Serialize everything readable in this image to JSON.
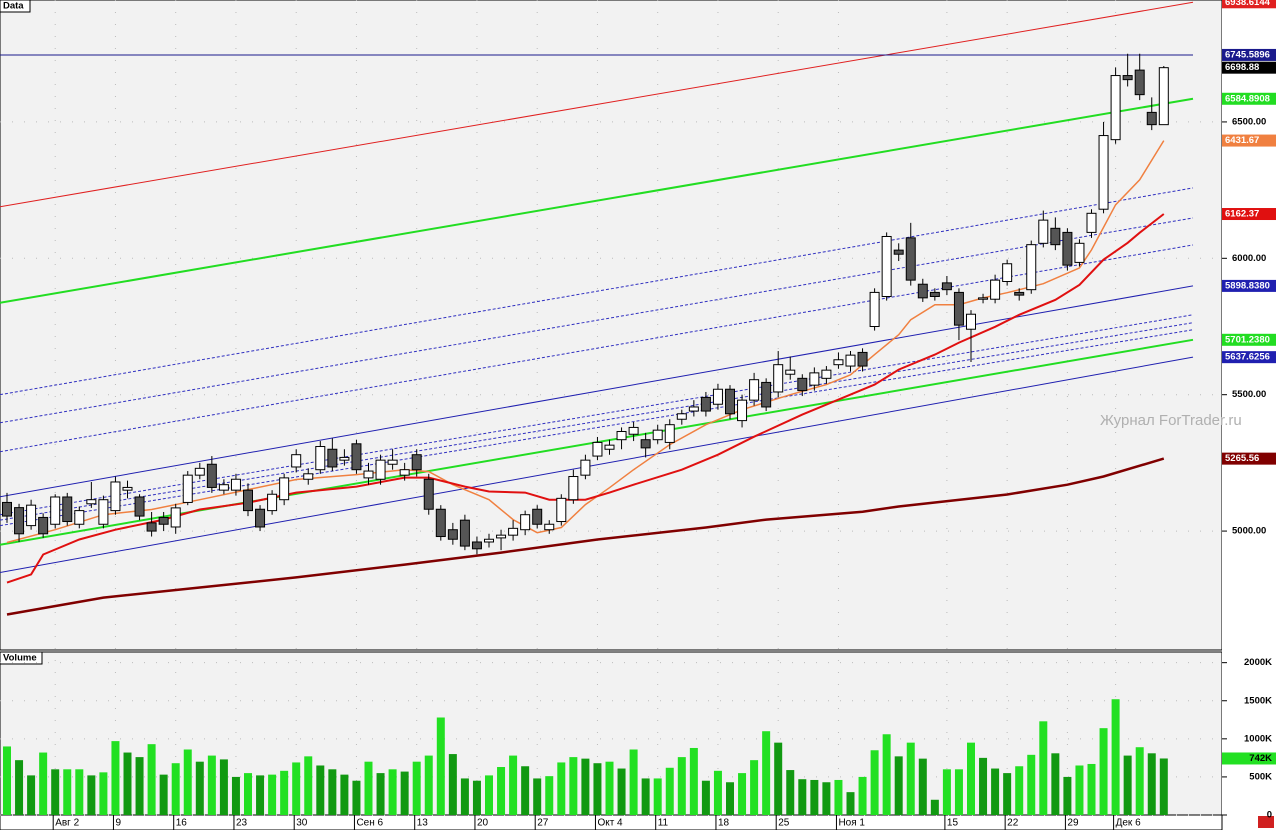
{
  "chart_data": [
    {
      "type": "candlestick",
      "panel_label": "Data",
      "annotation": "Журнал ForTrader.ru",
      "categories": [
        null,
        null,
        null,
        null,
        "Авг 2",
        null,
        null,
        null,
        null,
        "9",
        null,
        null,
        null,
        null,
        "16",
        null,
        null,
        null,
        null,
        "23",
        null,
        null,
        null,
        null,
        "30",
        null,
        null,
        null,
        null,
        "Сен 6",
        null,
        null,
        null,
        null,
        "13",
        null,
        null,
        null,
        null,
        "20",
        null,
        null,
        null,
        null,
        "27",
        null,
        null,
        null,
        null,
        "Окт 4",
        null,
        null,
        null,
        null,
        "11",
        null,
        null,
        null,
        null,
        "18",
        null,
        null,
        null,
        null,
        "25",
        null,
        null,
        null,
        null,
        "Ноя 1",
        null,
        null,
        null,
        null,
        null,
        null,
        null,
        null,
        "15",
        null,
        null,
        null,
        null,
        "22",
        null,
        null,
        null,
        null,
        "29",
        null,
        null,
        null,
        "Дек 6",
        null,
        null,
        null,
        null
      ],
      "open": [
        5105,
        5086,
        5020,
        5050,
        5025,
        5125,
        5025,
        5100,
        5025,
        5075,
        5150,
        5125,
        5030,
        5050,
        5015,
        5105,
        5205,
        5245,
        5150,
        5150,
        5150,
        5080,
        5075,
        5115,
        5235,
        5190,
        5225,
        5300,
        5260,
        5320,
        5195,
        5190,
        5245,
        5205,
        5280,
        5190,
        5080,
        5005,
        5040,
        4960,
        4960,
        4975,
        4985,
        5005,
        5080,
        5005,
        5035,
        5115,
        5205,
        5275,
        5300,
        5335,
        5355,
        5335,
        5335,
        5325,
        5410,
        5440,
        5490,
        5465,
        5520,
        5405,
        5480,
        5545,
        5510,
        5575,
        5560,
        5535,
        5560,
        5610,
        5605,
        5655,
        5750,
        5860,
        6030,
        6075,
        5905,
        5875,
        5910,
        5875,
        5740,
        5850,
        5850,
        5915,
        5875,
        5885,
        6055,
        6110,
        6095,
        5985,
        6095,
        6180,
        6435,
        6670,
        6690,
        6535,
        6490
      ],
      "high": [
        5140,
        5100,
        5115,
        5065,
        5135,
        5140,
        5090,
        5180,
        5130,
        5200,
        5185,
        5135,
        5070,
        5070,
        5100,
        5220,
        5250,
        5275,
        5190,
        5210,
        5175,
        5095,
        5150,
        5210,
        5300,
        5230,
        5330,
        5340,
        5300,
        5335,
        5250,
        5280,
        5300,
        5250,
        5300,
        5210,
        5095,
        5030,
        5060,
        4980,
        4990,
        5005,
        5040,
        5075,
        5095,
        5040,
        5135,
        5225,
        5280,
        5345,
        5335,
        5380,
        5400,
        5360,
        5390,
        5410,
        5445,
        5480,
        5510,
        5540,
        5535,
        5500,
        5580,
        5560,
        5660,
        5640,
        5575,
        5600,
        5605,
        5655,
        5660,
        5670,
        5890,
        6095,
        6055,
        6130,
        5925,
        5890,
        5935,
        5890,
        5810,
        5870,
        5940,
        5995,
        5890,
        6065,
        6175,
        6150,
        6110,
        6070,
        6180,
        6500,
        6700,
        6750,
        6750,
        6590,
        6705
      ],
      "low": [
        5030,
        4960,
        5005,
        4975,
        5010,
        5020,
        5010,
        5085,
        5010,
        5060,
        5120,
        5040,
        4980,
        5000,
        4990,
        5095,
        5190,
        5140,
        5135,
        5130,
        5055,
        5000,
        5060,
        5095,
        5215,
        5170,
        5210,
        5220,
        5240,
        5210,
        5170,
        5170,
        5225,
        5185,
        5200,
        5060,
        4965,
        4950,
        4930,
        4915,
        4940,
        4930,
        4965,
        4985,
        5010,
        4990,
        5020,
        5100,
        5190,
        5260,
        5280,
        5300,
        5330,
        5270,
        5320,
        5300,
        5390,
        5420,
        5420,
        5445,
        5410,
        5380,
        5460,
        5440,
        5490,
        5555,
        5495,
        5515,
        5540,
        5595,
        5585,
        5585,
        5735,
        5845,
        5990,
        5900,
        5840,
        5845,
        5865,
        5700,
        5620,
        5835,
        5835,
        5900,
        5845,
        5870,
        6040,
        6030,
        5955,
        5970,
        6075,
        6165,
        6420,
        6630,
        6580,
        6470,
        6500
      ],
      "close": [
        5055,
        4990,
        5095,
        4990,
        5125,
        5035,
        5075,
        5115,
        5115,
        5180,
        5160,
        5055,
        5000,
        5025,
        5085,
        5205,
        5230,
        5160,
        5170,
        5190,
        5075,
        5015,
        5135,
        5195,
        5280,
        5210,
        5310,
        5235,
        5270,
        5225,
        5220,
        5260,
        5260,
        5225,
        5225,
        5080,
        4980,
        4970,
        4945,
        4935,
        4970,
        4985,
        5010,
        5060,
        5025,
        5025,
        5120,
        5200,
        5260,
        5325,
        5315,
        5365,
        5380,
        5305,
        5370,
        5390,
        5430,
        5455,
        5440,
        5520,
        5430,
        5480,
        5555,
        5455,
        5610,
        5590,
        5515,
        5580,
        5590,
        5628,
        5645,
        5605,
        5875,
        6080,
        6015,
        5920,
        5855,
        5860,
        5885,
        5755,
        5795,
        5855,
        5920,
        5980,
        5865,
        6050,
        6140,
        6050,
        5975,
        6055,
        6165,
        6450,
        6670,
        6655,
        6600,
        6490,
        6698.88
      ],
      "up_color": "#ffffff",
      "down_color": "#555555",
      "last_price_tag_color": "#000000",
      "ylim": [
        4564,
        6947
      ],
      "yticks": [
        {
          "value": 5000,
          "label": "5000.00"
        },
        {
          "value": 5500,
          "label": "5500.00"
        },
        {
          "value": 6000,
          "label": "6000.00"
        },
        {
          "value": 6500,
          "label": "6500.00"
        }
      ],
      "grid": true,
      "overlays": [
        {
          "color": "#e02020",
          "style": "solid",
          "width": 1,
          "start": 6189,
          "end": 6938.6144,
          "axis_tag": true
        },
        {
          "color": "#1a1a8c",
          "style": "solid",
          "width": 1,
          "start": 6745.5896,
          "end": 6745.5896,
          "axis_tag": true
        },
        {
          "color": "#22dd22",
          "style": "solid",
          "width": 2,
          "start": 5837,
          "end": 6584.8908,
          "axis_tag": true
        },
        {
          "color": "#2020b0",
          "style": "solid",
          "width": 1,
          "start": 5126,
          "end": 5898.838,
          "end_label": "5898.8380",
          "axis_tag": true
        },
        {
          "color": "#22dd22",
          "style": "solid",
          "width": 2,
          "start": 4950,
          "end": 5701.238,
          "end_label": "5701.2380",
          "axis_tag": true
        },
        {
          "color": "#2020b0",
          "style": "solid",
          "width": 1,
          "start": 4848,
          "end": 5637.6256,
          "axis_tag": true
        },
        {
          "color": "#3030c0",
          "style": "dashed",
          "width": 1,
          "start": 5500,
          "end": 6258
        },
        {
          "color": "#3030c0",
          "style": "dashed",
          "width": 1,
          "start": 5397,
          "end": 6148
        },
        {
          "color": "#3030c0",
          "style": "dashed",
          "width": 1,
          "start": 5291,
          "end": 6049
        },
        {
          "color": "#3030c0",
          "style": "dashed",
          "width": 1,
          "start": 5060,
          "end": 5793
        },
        {
          "color": "#3030c0",
          "style": "dashed",
          "width": 1,
          "start": 5040,
          "end": 5764
        },
        {
          "color": "#3030c0",
          "style": "dashed",
          "width": 1,
          "start": 5020,
          "end": 5738
        }
      ],
      "moving_averages": [
        {
          "color": "#f08040",
          "width": 1.5,
          "axis_tag": true,
          "x": [
            0,
            4,
            8,
            12,
            16,
            20,
            24,
            29,
            33,
            35,
            37,
            40,
            42,
            44,
            46,
            48,
            50,
            52,
            55,
            58,
            61,
            65,
            68,
            70,
            72,
            74,
            75,
            77,
            79,
            81,
            83,
            86,
            89,
            90,
            92,
            94,
            96
          ],
          "values": [
            4958,
            5005,
            5060,
            5079,
            5115,
            5152,
            5189,
            5207,
            5225,
            5218,
            5170,
            5115,
            5042,
            4994,
            5013,
            5097,
            5159,
            5225,
            5317,
            5390,
            5445,
            5500,
            5537,
            5573,
            5647,
            5720,
            5775,
            5830,
            5830,
            5855,
            5874,
            5907,
            5965,
            6031,
            6196,
            6288,
            6431.67
          ]
        },
        {
          "color": "#e01010",
          "width": 2,
          "axis_tag": true,
          "x": [
            0,
            2,
            3,
            6,
            9,
            13,
            16,
            20,
            24,
            29,
            33,
            35,
            38,
            40,
            43,
            45,
            48,
            50,
            52,
            56,
            59,
            62,
            66,
            69,
            72,
            74,
            77,
            79,
            82,
            84,
            87,
            89,
            91,
            93,
            94,
            96
          ],
          "values": [
            4811,
            4841,
            4914,
            4969,
            5005,
            5042,
            5079,
            5104,
            5141,
            5163,
            5196,
            5196,
            5163,
            5145,
            5141,
            5115,
            5115,
            5141,
            5170,
            5225,
            5280,
            5346,
            5427,
            5482,
            5537,
            5592,
            5647,
            5691,
            5749,
            5793,
            5848,
            5903,
            5995,
            6057,
            6094,
            6162.37
          ]
        },
        {
          "color": "#800000",
          "width": 2.5,
          "axis_tag": true,
          "x": [
            0,
            8,
            16,
            24,
            33,
            41,
            49,
            58,
            63,
            71,
            74,
            83,
            88,
            91,
            96
          ],
          "values": [
            4694,
            4756,
            4793,
            4830,
            4877,
            4921,
            4969,
            5013,
            5042,
            5071,
            5090,
            5134,
            5170,
            5200,
            5265.56
          ]
        }
      ]
    },
    {
      "type": "volume_bar",
      "panel_label": "Volume",
      "values": [
        900,
        720,
        520,
        820,
        600,
        600,
        600,
        520,
        560,
        970,
        820,
        760,
        930,
        530,
        680,
        860,
        700,
        780,
        730,
        500,
        550,
        520,
        530,
        580,
        690,
        770,
        650,
        600,
        530,
        450,
        700,
        550,
        600,
        570,
        700,
        780,
        1280,
        800,
        480,
        450,
        520,
        630,
        780,
        640,
        480,
        510,
        690,
        760,
        740,
        680,
        700,
        610,
        860,
        480,
        480,
        620,
        760,
        880,
        450,
        580,
        430,
        550,
        720,
        1100,
        950,
        590,
        470,
        460,
        430,
        460,
        300,
        500,
        850,
        1060,
        770,
        950,
        740,
        200,
        600,
        600,
        950,
        750,
        610,
        550,
        640,
        790,
        1230,
        810,
        500,
        650,
        670,
        1140,
        1520,
        780,
        890,
        810,
        742
      ],
      "last_value_label": "742K",
      "up_color": "#22e022",
      "down_color": "#119911",
      "ylim": [
        0,
        2140
      ],
      "yticks": [
        0,
        {
          "value": 500,
          "label": "500K"
        },
        {
          "value": 1000,
          "label": "1000K"
        },
        {
          "value": 1500,
          "label": "1500K"
        },
        {
          "value": 2000,
          "label": "2000K"
        }
      ]
    }
  ]
}
